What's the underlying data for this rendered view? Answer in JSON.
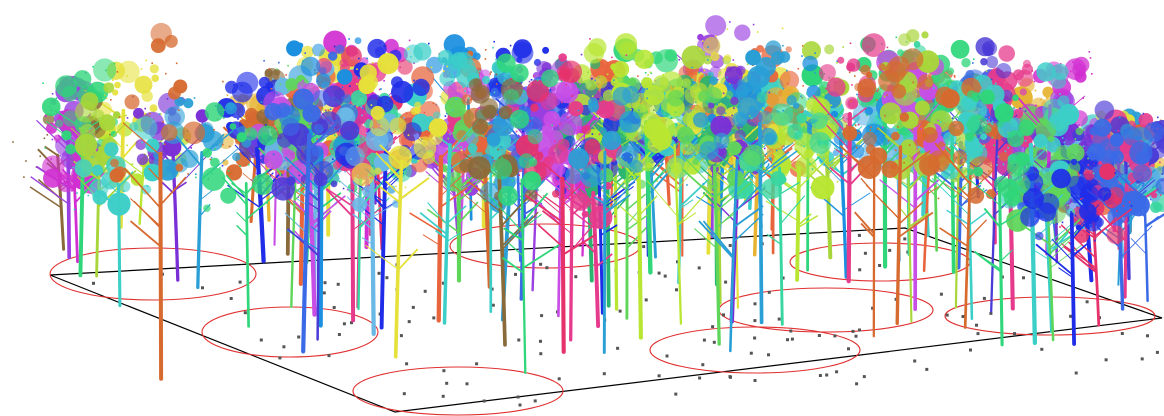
{
  "scene": {
    "background": "#ffffff",
    "plot_boundary_color": "#000000",
    "plot_circle_color": "#e03030",
    "ground_point_color": "#555555",
    "tree_palette": [
      "#e8643c",
      "#1f2de8",
      "#7a2fd6",
      "#2a9fd6",
      "#38d6a0",
      "#b8e632",
      "#e63a8c",
      "#d12fd1",
      "#3ccfc8",
      "#9a3fe0",
      "#5fd65a",
      "#e6b432",
      "#2ab56e",
      "#c84fe6",
      "#1b8fe0",
      "#e6e13a",
      "#8a6a3a",
      "#4a3ad6",
      "#2fd67a",
      "#e6326a",
      "#6ab8e6",
      "#a8d63a",
      "#d66a2f",
      "#3a6ae6"
    ],
    "tree_count": 150,
    "plot_circle_count": 8
  }
}
